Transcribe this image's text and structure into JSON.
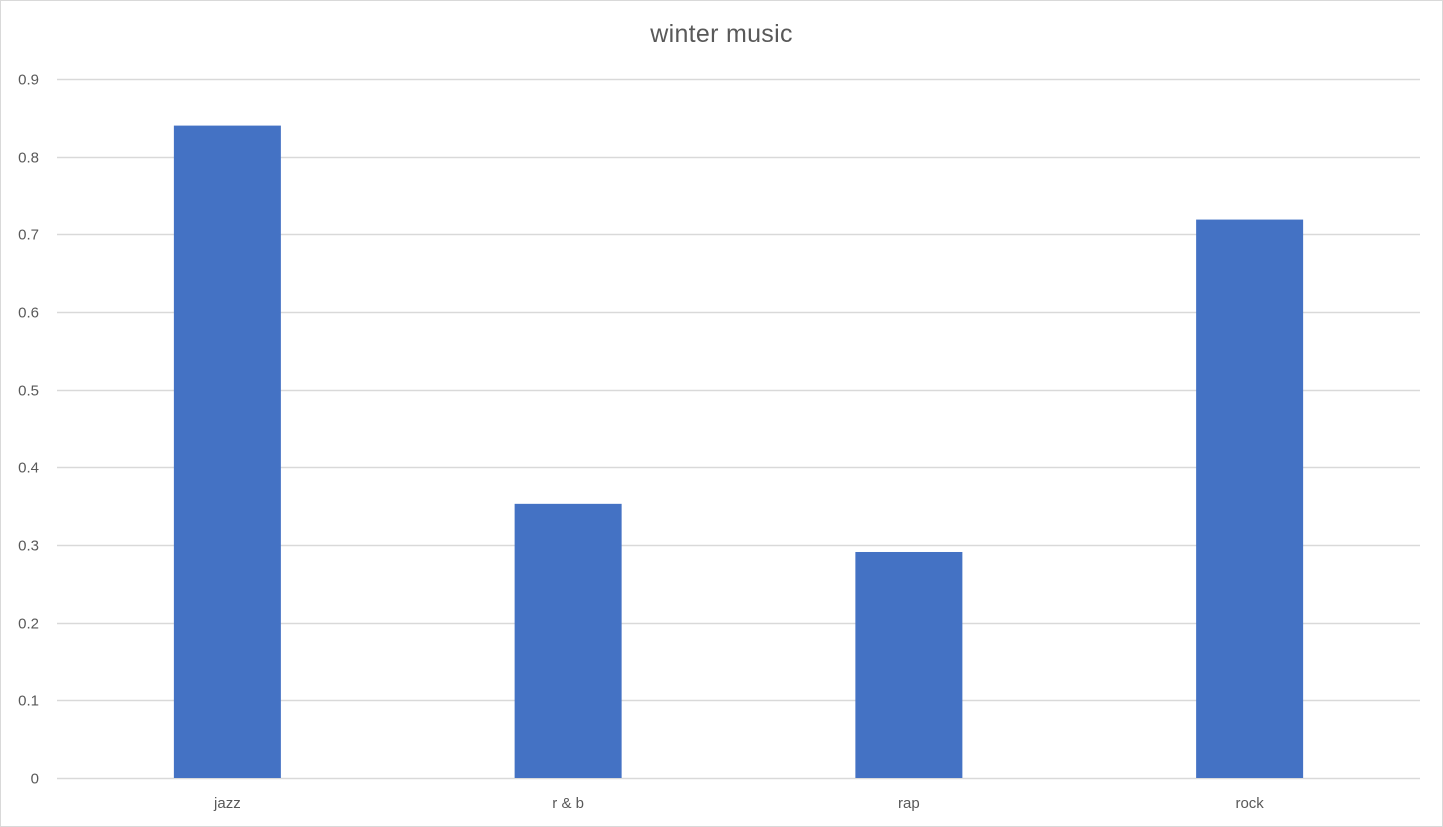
{
  "chart_data": {
    "type": "bar",
    "title": "winter music",
    "categories": [
      "jazz",
      "r & b",
      "rap",
      "rock"
    ],
    "values": [
      0.84,
      0.353,
      0.291,
      0.719
    ],
    "ylim": [
      0,
      0.9
    ],
    "yticks": [
      "0",
      "0.1",
      "0.2",
      "0.3",
      "0.4",
      "0.5",
      "0.6",
      "0.7",
      "0.8",
      "0.9"
    ],
    "ytick_values": [
      0,
      0.1,
      0.2,
      0.3,
      0.4,
      0.5,
      0.6,
      0.7,
      0.8,
      0.9
    ],
    "grid": true,
    "legend": "none",
    "colors": {
      "bar": "#4472C4",
      "grid": "#d9d9d9",
      "text": "#595959"
    }
  }
}
